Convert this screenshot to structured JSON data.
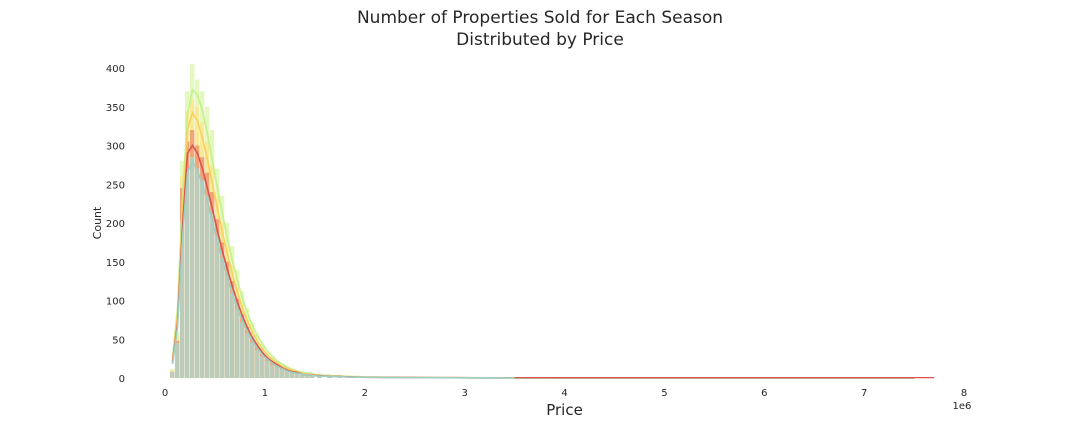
{
  "chart_data": {
    "type": "bar",
    "title_lines": [
      "Number of Properties Sold for Each Season",
      "Distributed by Price"
    ],
    "xlabel": "Price",
    "ylabel": "Count",
    "x_offset_text": "1e6",
    "xlim": [
      0,
      8
    ],
    "ylim": [
      0,
      400
    ],
    "x_ticks": [
      "0",
      "1",
      "2",
      "3",
      "4",
      "5",
      "6",
      "7",
      "8"
    ],
    "y_ticks": [
      "0",
      "50",
      "100",
      "150",
      "200",
      "250",
      "300",
      "350",
      "400"
    ],
    "grid": false,
    "legend": "none",
    "bin_width": 0.05,
    "x": [
      0.075,
      0.125,
      0.175,
      0.225,
      0.275,
      0.325,
      0.375,
      0.425,
      0.475,
      0.525,
      0.575,
      0.625,
      0.675,
      0.725,
      0.775,
      0.825,
      0.875,
      0.925,
      0.975,
      1.025,
      1.075,
      1.125,
      1.175,
      1.225,
      1.275,
      1.325,
      1.375,
      1.425,
      1.475,
      1.55,
      1.65,
      1.75,
      1.85,
      1.95,
      2.1,
      2.3,
      2.5,
      2.7,
      2.9,
      3.1,
      3.3,
      3.55,
      4.0,
      4.5,
      5.0,
      5.5,
      6.0,
      6.5,
      7.0,
      7.5
    ],
    "series": [
      {
        "color": "#d9f7a8",
        "values": [
          12,
          60,
          280,
          370,
          405,
          385,
          370,
          350,
          320,
          270,
          235,
          200,
          170,
          140,
          112,
          90,
          72,
          56,
          44,
          34,
          28,
          22,
          18,
          15,
          12,
          10,
          9,
          8,
          7,
          6,
          5,
          4,
          3,
          3,
          2,
          2,
          2,
          1,
          1,
          1,
          1,
          1,
          0,
          0,
          0,
          0,
          0,
          0,
          0,
          0
        ],
        "kde": [
          25,
          90,
          230,
          340,
          372,
          365,
          345,
          315,
          280,
          245,
          212,
          180,
          152,
          126,
          103,
          84,
          68,
          55,
          44,
          35,
          28,
          22,
          18,
          14,
          11,
          9,
          7,
          6,
          5,
          4,
          3,
          2.5,
          2,
          1.5,
          1.2,
          1,
          0.8,
          0.6,
          0.5,
          0.4,
          0.3,
          0.2,
          0.1,
          0.1,
          0,
          0,
          0,
          0,
          0,
          0
        ]
      },
      {
        "color": "#fde58c",
        "values": [
          10,
          55,
          260,
          345,
          360,
          350,
          330,
          305,
          275,
          235,
          200,
          172,
          145,
          118,
          95,
          75,
          60,
          47,
          37,
          29,
          23,
          18,
          15,
          12,
          10,
          8,
          7,
          6,
          5,
          4,
          4,
          3,
          2,
          2,
          2,
          1,
          1,
          1,
          1,
          0,
          0,
          0,
          0,
          0,
          0,
          0,
          0,
          0,
          0,
          0
        ],
        "kde": [
          22,
          80,
          215,
          320,
          342,
          332,
          310,
          282,
          250,
          218,
          188,
          160,
          134,
          111,
          91,
          74,
          60,
          48,
          38,
          30,
          24,
          19,
          15,
          12,
          10,
          8,
          6,
          5,
          4,
          3,
          2.5,
          2,
          1.5,
          1.2,
          1,
          0.8,
          0.6,
          0.5,
          0.4,
          0.3,
          0.2,
          0.1,
          0.1,
          0,
          0,
          0,
          0,
          0,
          0,
          0
        ]
      },
      {
        "color": "#f08c6c",
        "values": [
          8,
          48,
          245,
          305,
          320,
          300,
          285,
          265,
          240,
          205,
          175,
          150,
          125,
          102,
          82,
          66,
          52,
          41,
          32,
          25,
          20,
          16,
          13,
          10,
          8,
          7,
          6,
          5,
          4,
          4,
          3,
          2,
          2,
          2,
          1,
          1,
          1,
          1,
          0,
          0,
          0,
          0,
          0,
          0,
          0,
          0,
          0,
          0,
          0,
          0
        ],
        "kde": [
          20,
          70,
          195,
          290,
          300,
          290,
          270,
          245,
          218,
          190,
          164,
          140,
          118,
          98,
          80,
          65,
          52,
          42,
          33,
          26,
          21,
          17,
          13,
          10,
          8,
          7,
          5,
          4,
          3.5,
          3,
          2.2,
          1.8,
          1.4,
          1.1,
          0.9,
          0.7,
          0.6,
          0.5,
          0.4,
          0.3,
          0.2,
          0.2,
          0.1,
          0.1,
          0.1,
          0,
          0,
          0,
          0,
          0
        ]
      },
      {
        "color": "#a9d8d0",
        "values": [
          8,
          45,
          200,
          270,
          285,
          270,
          255,
          235,
          212,
          182,
          155,
          132,
          110,
          90,
          72,
          58,
          46,
          36,
          28,
          22,
          17,
          14,
          11,
          9,
          7,
          6,
          5,
          4,
          3,
          3,
          2,
          2,
          2,
          1,
          1,
          1,
          1,
          0,
          0,
          0,
          0,
          0,
          0,
          0,
          0,
          0,
          0,
          0,
          0,
          0
        ],
        "kde": [
          18,
          65,
          180,
          265,
          280,
          268,
          250,
          228,
          202,
          176,
          152,
          130,
          109,
          90,
          74,
          60,
          48,
          38,
          30,
          24,
          19,
          15,
          12,
          9,
          7,
          6,
          5,
          4,
          3,
          2.5,
          2,
          1.6,
          1.2,
          1,
          0.8,
          0.6,
          0.5,
          0.4,
          0.3,
          0.2,
          0.2,
          0.1,
          0.1,
          0,
          0,
          0,
          0,
          0,
          0,
          0
        ]
      }
    ],
    "kde_colors": [
      "#c5f08c",
      "#f7d060",
      "#d9544f",
      "#9fcfc4"
    ],
    "long_tail_line": {
      "color": "#d9544f",
      "x": [
        3.5,
        7.7
      ],
      "y": 0.5
    }
  }
}
